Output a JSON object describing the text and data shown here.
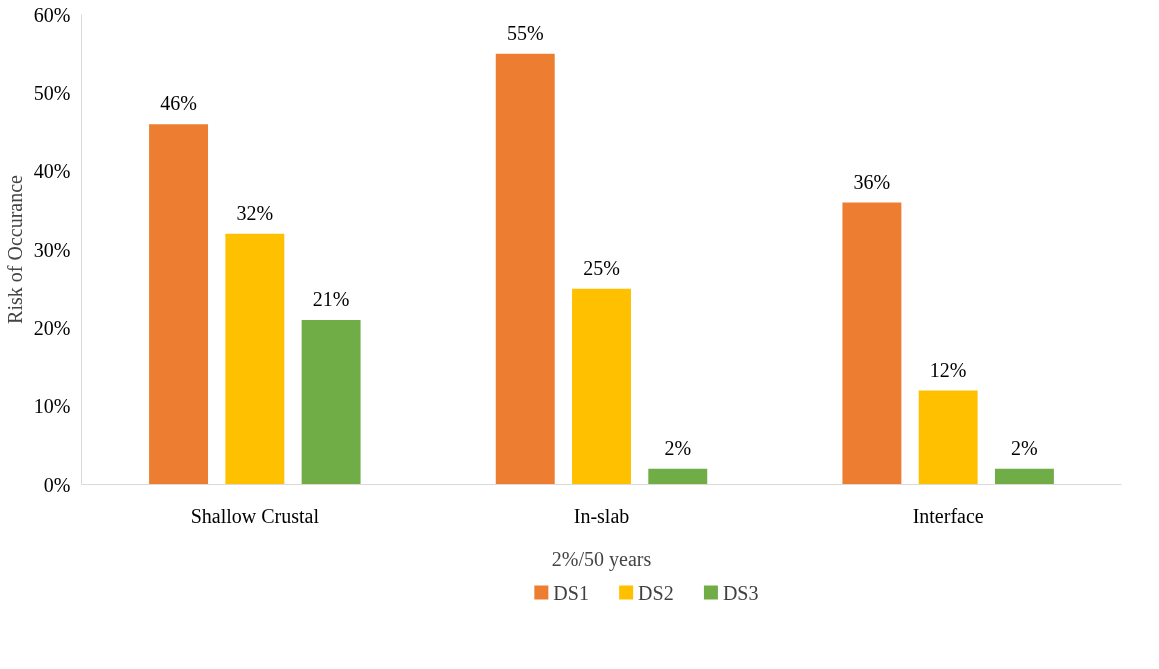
{
  "chart_data": {
    "type": "bar",
    "xlabel": "2%/50 years",
    "ylabel": "Risk of Occurance",
    "categories": [
      "Shallow Crustal",
      "In-slab",
      "Interface"
    ],
    "series": [
      {
        "name": "DS1",
        "color": "#ed7d31",
        "values": [
          46,
          55,
          36
        ],
        "value_labels": [
          "46%",
          "55%",
          "36%"
        ]
      },
      {
        "name": "DS2",
        "color": "#ffc000",
        "values": [
          32,
          25,
          12
        ],
        "value_labels": [
          "32%",
          "25%",
          "12%"
        ]
      },
      {
        "name": "DS3",
        "color": "#70ad47",
        "values": [
          21,
          2,
          2
        ],
        "value_labels": [
          "21%",
          "2%",
          "2%"
        ]
      }
    ],
    "ylim": [
      0,
      60
    ],
    "yticks": [
      {
        "value": 0,
        "label": "0%"
      },
      {
        "value": 10,
        "label": "10%"
      },
      {
        "value": 20,
        "label": "20%"
      },
      {
        "value": 30,
        "label": "30%"
      },
      {
        "value": 40,
        "label": "40%"
      },
      {
        "value": 50,
        "label": "50%"
      },
      {
        "value": 60,
        "label": "60%"
      }
    ],
    "grid": false,
    "legend": "bottom"
  }
}
